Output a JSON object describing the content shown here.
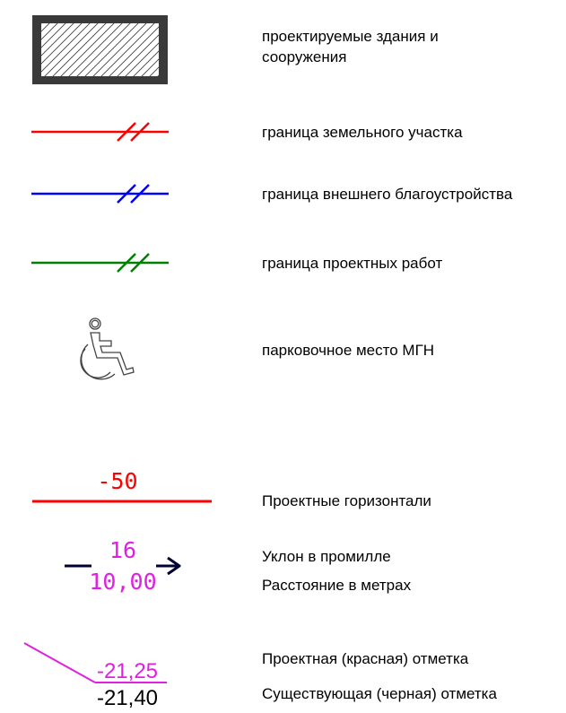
{
  "legend": {
    "items": [
      {
        "id": "buildings",
        "label_line1": "проектируемые здания и",
        "label_line2": "сооружения"
      },
      {
        "id": "land_boundary",
        "label": "граница земельного участка",
        "line_color": "#ff0000"
      },
      {
        "id": "landscaping_boundary",
        "label": "граница внешнего благоустройства",
        "line_color": "#0000ff"
      },
      {
        "id": "works_boundary",
        "label": "граница проектных работ",
        "line_color": "#008000"
      },
      {
        "id": "parking_mgn",
        "label": "парковочное место МГН"
      },
      {
        "id": "contours",
        "label": "Проектные горизонтали",
        "symbol_value": "-50",
        "color": "#ff0000"
      },
      {
        "id": "slope",
        "label_slope": "Уклон в промилле",
        "label_distance": "Расстояние в метрах",
        "slope_value": "16",
        "distance_value": "10,00",
        "value_color": "#e020e0",
        "arrow_color": "#000033"
      },
      {
        "id": "elevations",
        "label_design": "Проектная (красная) отметка",
        "label_existing": "Существующая (черная) отметка",
        "design_value": "-21,25",
        "existing_value": "-21,40",
        "design_color": "#e020e0"
      }
    ]
  }
}
